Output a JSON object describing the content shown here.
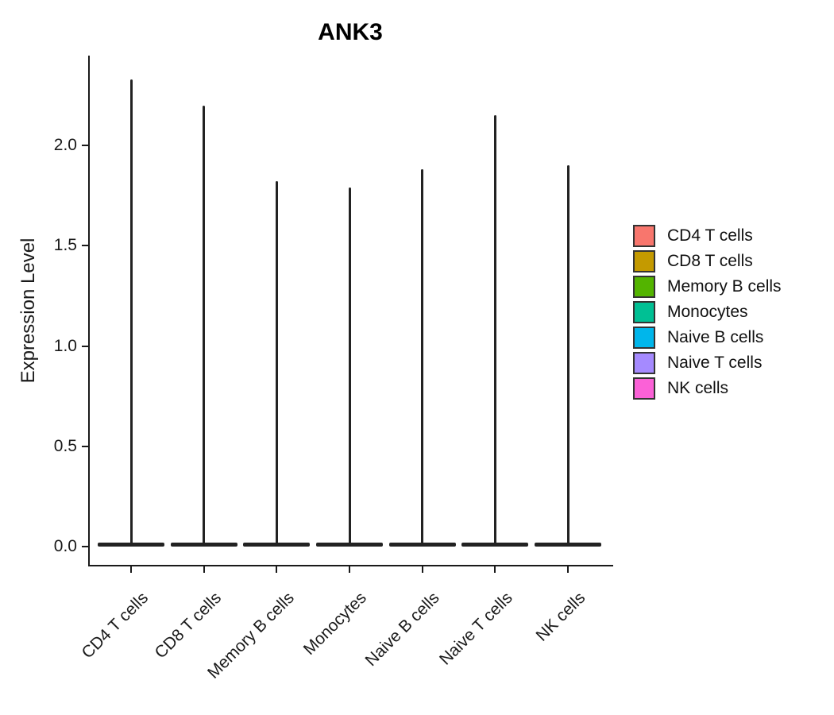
{
  "chart_data": {
    "type": "violin",
    "title": "ANK3",
    "ylabel": "Expression Level",
    "xlabel": "",
    "categories": [
      "CD4 T cells",
      "CD8 T cells",
      "Memory B cells",
      "Monocytes",
      "Naive B cells",
      "Naive T cells",
      "NK cells"
    ],
    "series": [
      {
        "name": "CD4 T cells",
        "color": "#F8766D",
        "max_expression": 2.33,
        "mode_expression": 0.0
      },
      {
        "name": "CD8 T cells",
        "color": "#C49A00",
        "max_expression": 2.2,
        "mode_expression": 0.0
      },
      {
        "name": "Memory B cells",
        "color": "#53B400",
        "max_expression": 1.82,
        "mode_expression": 0.0
      },
      {
        "name": "Monocytes",
        "color": "#00C094",
        "max_expression": 1.79,
        "mode_expression": 0.0
      },
      {
        "name": "Naive B cells",
        "color": "#00B6EB",
        "max_expression": 1.88,
        "mode_expression": 0.0
      },
      {
        "name": "Naive T cells",
        "color": "#A58AFF",
        "max_expression": 2.15,
        "mode_expression": 0.0
      },
      {
        "name": "NK cells",
        "color": "#FB61D7",
        "max_expression": 1.9,
        "mode_expression": 0.0
      }
    ],
    "yticks": [
      0.0,
      0.5,
      1.0,
      1.5,
      2.0
    ],
    "ytick_labels": [
      "0.0",
      "0.5",
      "1.0",
      "1.5",
      "2.0"
    ],
    "ylim": [
      -0.1,
      2.45
    ],
    "grid": false,
    "legend_position": "right",
    "shape_note": "Each violin is an extremely thin spike: nearly all cells have expression 0 (wide flat base at y=0), with a hair-thin tail rising to the maximum value.",
    "outline_color": "#222222",
    "axis_color": "#1a1a1a"
  }
}
